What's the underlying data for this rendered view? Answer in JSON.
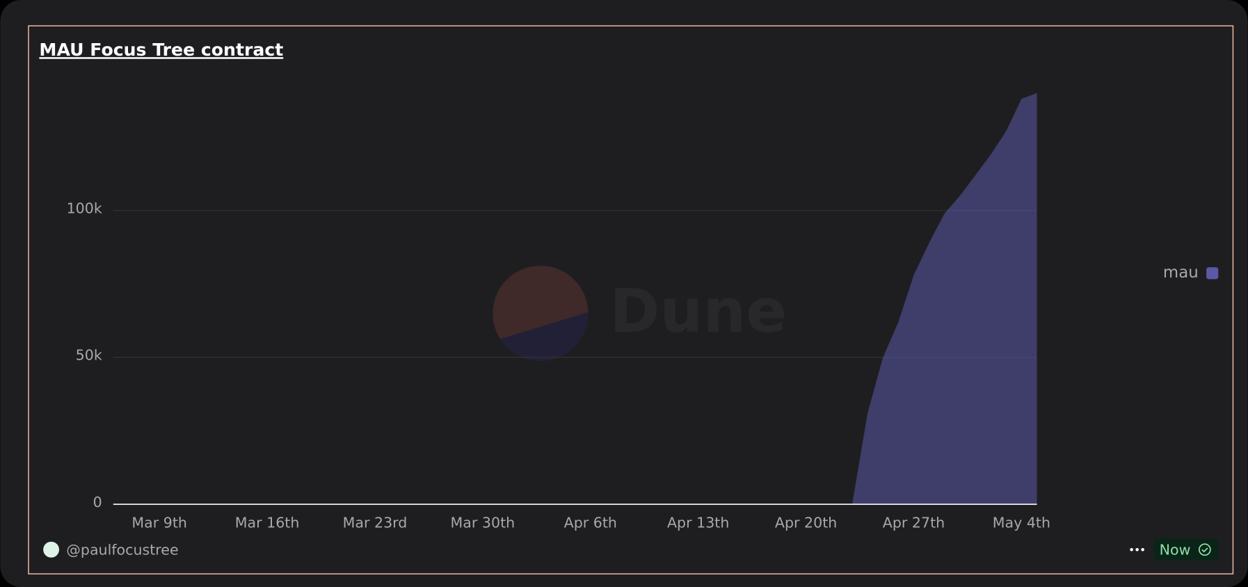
{
  "chart_data": {
    "type": "area",
    "title": "MAU Focus Tree contract",
    "x": [
      "Apr 23rd",
      "Apr 24th",
      "Apr 25th",
      "Apr 26th",
      "Apr 27th",
      "Apr 28th",
      "Apr 29th",
      "Apr 30th",
      "May 1st",
      "May 2nd",
      "May 3rd",
      "May 4th",
      "May 5th"
    ],
    "series": [
      {
        "name": "mau",
        "color": "#5b58a6",
        "values": [
          0,
          31000,
          50000,
          62000,
          78000,
          89000,
          99000,
          105000,
          112000,
          119000,
          127000,
          138000,
          140000
        ]
      }
    ],
    "xlim": [
      "Mar 6th",
      "May 5th"
    ],
    "xticks": [
      "Mar 9th",
      "Mar 16th",
      "Mar 23rd",
      "Mar 30th",
      "Apr 6th",
      "Apr 13th",
      "Apr 20th",
      "Apr 27th",
      "May 4th"
    ],
    "ylim": [
      0,
      150000
    ],
    "yticks": [
      0,
      {
        "value": 50000,
        "label": "50k"
      },
      {
        "value": 100000,
        "label": "100k"
      }
    ],
    "grid": true,
    "legend": "right"
  },
  "watermark": "Dune",
  "footer": {
    "author": "@paulfocustree",
    "badge": "Now"
  }
}
